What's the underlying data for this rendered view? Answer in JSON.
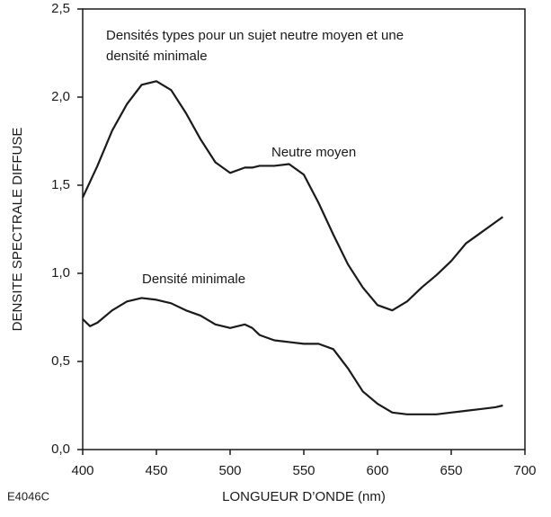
{
  "chart_data": {
    "type": "line",
    "annotations": [
      "Densités types pour un sujet neutre moyen et une",
      "densité minimale",
      "E4046C"
    ],
    "xlabel": "LONGUEUR D’ONDE (nm)",
    "ylabel": "DENSITE SPECTRALE DIFFUSE",
    "x": [
      400,
      405,
      410,
      420,
      430,
      440,
      450,
      460,
      470,
      480,
      490,
      500,
      510,
      515,
      520,
      530,
      540,
      550,
      560,
      570,
      580,
      590,
      600,
      610,
      620,
      630,
      640,
      650,
      660,
      670,
      680,
      685
    ],
    "series": [
      {
        "name": "Neutre moyen",
        "color": "#1a1a1a",
        "values": [
          1.43,
          1.52,
          1.61,
          1.81,
          1.96,
          2.07,
          2.09,
          2.04,
          1.91,
          1.76,
          1.63,
          1.57,
          1.6,
          1.6,
          1.61,
          1.61,
          1.62,
          1.56,
          1.4,
          1.22,
          1.05,
          0.92,
          0.82,
          0.79,
          0.84,
          0.92,
          0.99,
          1.07,
          1.17,
          1.23,
          1.29,
          1.32
        ]
      },
      {
        "name": "Densité minimale",
        "color": "#1a1a1a",
        "values": [
          0.74,
          0.7,
          0.72,
          0.79,
          0.84,
          0.86,
          0.85,
          0.83,
          0.79,
          0.76,
          0.71,
          0.69,
          0.71,
          0.69,
          0.65,
          0.62,
          0.61,
          0.6,
          0.6,
          0.57,
          0.46,
          0.33,
          0.26,
          0.21,
          0.2,
          0.2,
          0.2,
          0.21,
          0.22,
          0.23,
          0.24,
          0.25
        ]
      }
    ],
    "xlim": [
      400,
      700
    ],
    "xticks": [
      400,
      450,
      500,
      550,
      600,
      650,
      700
    ],
    "ylim": [
      0,
      2.5
    ],
    "yticks": [
      {
        "value": 0,
        "label": "0,0"
      },
      {
        "value": 0.5,
        "label": "0,5"
      },
      {
        "value": 1,
        "label": "1,0"
      },
      {
        "value": 1.5,
        "label": "1,5"
      },
      {
        "value": 2,
        "label": "2,0"
      },
      {
        "value": 2.5,
        "label": "2,5"
      }
    ],
    "grid": false
  }
}
